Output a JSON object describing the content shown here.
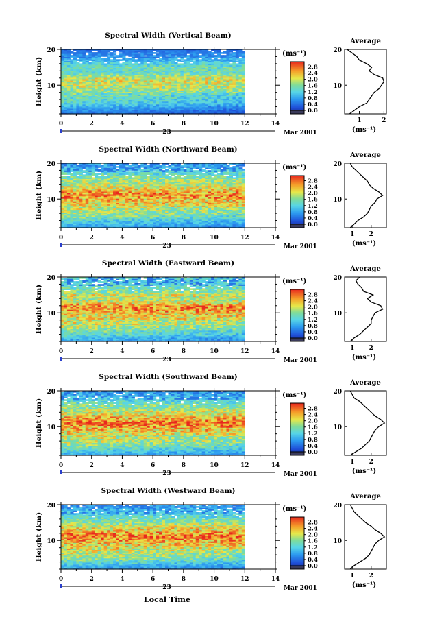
{
  "figure": {
    "xlabel": "Local Time",
    "date_day": "23",
    "date_month": "Mar 2001",
    "colorbar_unit": "(ms⁻¹)",
    "average_title": "Average",
    "average_unit": "(ms⁻¹)",
    "ylabel": "Height (km)"
  },
  "chart_data": [
    {
      "type": "heatmap",
      "title": "Spectral Width (Vertical Beam)",
      "xlabel": "Local Time",
      "ylabel": "Height (km)",
      "xlim": [
        0,
        14
      ],
      "ylim": [
        2,
        20
      ],
      "x_ticks": [
        0,
        2,
        4,
        6,
        8,
        10,
        12,
        14
      ],
      "y_ticks": [
        10,
        20
      ],
      "data_time_range": [
        0,
        12
      ],
      "colorbar": {
        "unit": "(ms⁻¹)",
        "range": [
          0,
          3
        ],
        "ticks": [
          "0.0",
          "0.4",
          "0.8",
          "1.2",
          "1.6",
          "2.0",
          "2.4",
          "2.8"
        ]
      },
      "average_profile": {
        "title": "Average",
        "xlabel": "(ms⁻¹)",
        "xlim": [
          0.4,
          2.1
        ],
        "x_ticks": [
          1,
          2
        ],
        "height": [
          2,
          3,
          4,
          5,
          6,
          7,
          8,
          9,
          10,
          11,
          12,
          13,
          14,
          15,
          16,
          17,
          18,
          19,
          20
        ],
        "values": [
          0.6,
          0.8,
          1.0,
          1.3,
          1.4,
          1.5,
          1.6,
          1.8,
          1.9,
          2.0,
          1.95,
          1.6,
          1.4,
          1.5,
          1.3,
          1.0,
          0.9,
          0.7,
          0.5
        ]
      }
    },
    {
      "type": "heatmap",
      "title": "Spectral Width (Northward Beam)",
      "xlabel": "Local Time",
      "ylabel": "Height (km)",
      "xlim": [
        0,
        14
      ],
      "ylim": [
        2,
        20
      ],
      "x_ticks": [
        0,
        2,
        4,
        6,
        8,
        10,
        12,
        14
      ],
      "y_ticks": [
        10,
        20
      ],
      "data_time_range": [
        0,
        12
      ],
      "colorbar": {
        "unit": "(ms⁻¹)",
        "range": [
          0,
          3
        ],
        "ticks": [
          "0.0",
          "0.4",
          "0.8",
          "1.2",
          "1.6",
          "2.0",
          "2.4",
          "2.8"
        ]
      },
      "average_profile": {
        "title": "Average",
        "xlabel": "(ms⁻¹)",
        "xlim": [
          0.6,
          2.8
        ],
        "x_ticks": [
          1,
          2
        ],
        "height": [
          2,
          3,
          4,
          5,
          6,
          7,
          8,
          9,
          10,
          11,
          12,
          13,
          14,
          15,
          16,
          17,
          18,
          19,
          20
        ],
        "values": [
          0.9,
          1.1,
          1.3,
          1.6,
          1.8,
          1.9,
          2.0,
          2.2,
          2.3,
          2.6,
          2.4,
          2.1,
          1.9,
          1.8,
          1.6,
          1.4,
          1.2,
          1.0,
          0.9
        ]
      }
    },
    {
      "type": "heatmap",
      "title": "Spectral Width (Eastward Beam)",
      "xlabel": "Local Time",
      "ylabel": "Height (km)",
      "xlim": [
        0,
        14
      ],
      "ylim": [
        2,
        20
      ],
      "x_ticks": [
        0,
        2,
        4,
        6,
        8,
        10,
        12,
        14
      ],
      "y_ticks": [
        10,
        20
      ],
      "data_time_range": [
        0,
        12
      ],
      "colorbar": {
        "unit": "(ms⁻¹)",
        "range": [
          0,
          3
        ],
        "ticks": [
          "0.0",
          "0.4",
          "0.8",
          "1.2",
          "1.6",
          "2.0",
          "2.4",
          "2.8"
        ]
      },
      "average_profile": {
        "title": "Average",
        "xlabel": "(ms⁻¹)",
        "xlim": [
          0.6,
          2.8
        ],
        "x_ticks": [
          1,
          2
        ],
        "height": [
          2,
          3,
          4,
          5,
          6,
          7,
          8,
          9,
          10,
          11,
          12,
          13,
          14,
          15,
          16,
          17,
          18,
          19,
          20
        ],
        "values": [
          0.9,
          1.1,
          1.4,
          1.6,
          1.8,
          2.0,
          2.0,
          2.1,
          2.2,
          2.6,
          2.5,
          2.0,
          1.8,
          2.1,
          1.6,
          1.5,
          1.3,
          1.2,
          1.4
        ]
      }
    },
    {
      "type": "heatmap",
      "title": "Spectral Width (Southward Beam)",
      "xlabel": "Local Time",
      "ylabel": "Height (km)",
      "xlim": [
        0,
        14
      ],
      "ylim": [
        2,
        20
      ],
      "x_ticks": [
        0,
        2,
        4,
        6,
        8,
        10,
        12,
        14
      ],
      "y_ticks": [
        10,
        20
      ],
      "data_time_range": [
        0,
        12
      ],
      "colorbar": {
        "unit": "(ms⁻¹)",
        "range": [
          0,
          3
        ],
        "ticks": [
          "0.0",
          "0.4",
          "0.8",
          "1.2",
          "1.6",
          "2.0",
          "2.4",
          "2.8"
        ]
      },
      "average_profile": {
        "title": "Average",
        "xlabel": "(ms⁻¹)",
        "xlim": [
          0.6,
          2.8
        ],
        "x_ticks": [
          1,
          2
        ],
        "height": [
          2,
          3,
          4,
          5,
          6,
          7,
          8,
          9,
          10,
          11,
          12,
          13,
          14,
          15,
          16,
          17,
          18,
          19,
          20
        ],
        "values": [
          0.9,
          1.2,
          1.5,
          1.7,
          1.9,
          2.0,
          2.1,
          2.2,
          2.4,
          2.7,
          2.5,
          2.2,
          2.0,
          1.8,
          1.6,
          1.4,
          1.1,
          1.0,
          0.9
        ]
      }
    },
    {
      "type": "heatmap",
      "title": "Spectral Width (Westward Beam)",
      "xlabel": "Local Time",
      "ylabel": "Height (km)",
      "xlim": [
        0,
        14
      ],
      "ylim": [
        2,
        20
      ],
      "x_ticks": [
        0,
        2,
        4,
        6,
        8,
        10,
        12,
        14
      ],
      "y_ticks": [
        10,
        20
      ],
      "data_time_range": [
        0,
        12
      ],
      "colorbar": {
        "unit": "(ms⁻¹)",
        "range": [
          0,
          3
        ],
        "ticks": [
          "0.0",
          "0.4",
          "0.8",
          "1.2",
          "1.6",
          "2.0",
          "2.4",
          "2.8"
        ]
      },
      "average_profile": {
        "title": "Average",
        "xlabel": "(ms⁻¹)",
        "xlim": [
          0.6,
          2.8
        ],
        "x_ticks": [
          1,
          2
        ],
        "height": [
          2,
          3,
          4,
          5,
          6,
          7,
          8,
          9,
          10,
          11,
          12,
          13,
          14,
          15,
          16,
          17,
          18,
          19,
          20
        ],
        "values": [
          0.9,
          1.1,
          1.4,
          1.7,
          1.9,
          2.0,
          2.1,
          2.2,
          2.4,
          2.7,
          2.5,
          2.2,
          2.0,
          1.7,
          1.5,
          1.3,
          1.1,
          1.0,
          0.9
        ]
      }
    }
  ]
}
